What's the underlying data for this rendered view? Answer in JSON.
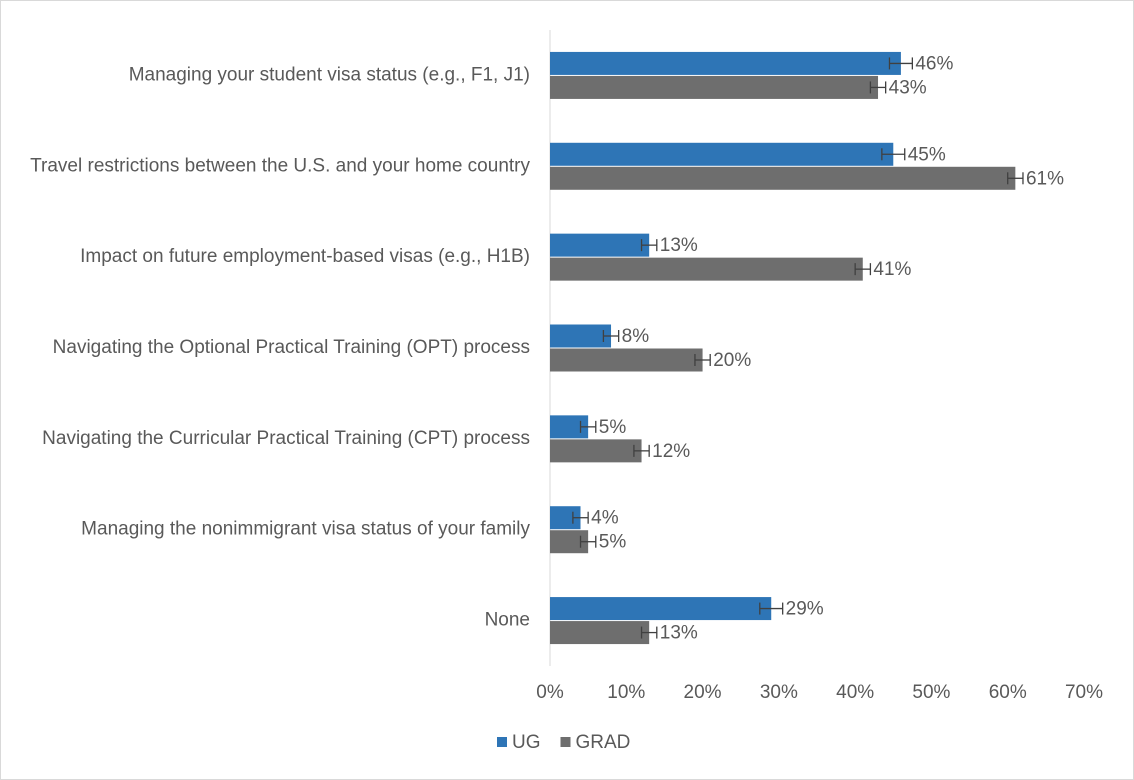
{
  "chart_data": {
    "type": "bar",
    "orientation": "horizontal",
    "categories": [
      "Managing your student visa status (e.g., F1, J1)",
      "Travel restrictions between the U.S. and your home country",
      "Impact on future employment-based visas (e.g., H1B)",
      "Navigating the Optional Practical Training (OPT) process",
      "Navigating the Curricular Practical Training (CPT) process",
      "Managing the nonimmigrant visa status of your family",
      "None"
    ],
    "series": [
      {
        "name": "UG",
        "color": "#2e75b6",
        "values": [
          46,
          45,
          13,
          8,
          5,
          4,
          29
        ],
        "errors": [
          1.5,
          1.5,
          1,
          1,
          1,
          1,
          1.5
        ],
        "value_labels": [
          "46%",
          "45%",
          "13%",
          "8%",
          "5%",
          "4%",
          "29%"
        ]
      },
      {
        "name": "GRAD",
        "color": "#6e6e6e",
        "values": [
          43,
          61,
          41,
          20,
          12,
          5,
          13
        ],
        "errors": [
          1,
          1,
          1,
          1,
          1,
          1,
          1
        ],
        "value_labels": [
          "43%",
          "61%",
          "41%",
          "20%",
          "12%",
          "5%",
          "13%"
        ]
      }
    ],
    "xlim": [
      0,
      70
    ],
    "xticks": [
      {
        "value": 0,
        "label": "0%"
      },
      {
        "value": 10,
        "label": "10%"
      },
      {
        "value": 20,
        "label": "20%"
      },
      {
        "value": 30,
        "label": "30%"
      },
      {
        "value": 40,
        "label": "40%"
      },
      {
        "value": 50,
        "label": "50%"
      },
      {
        "value": 60,
        "label": "60%"
      },
      {
        "value": 70,
        "label": "70%"
      }
    ],
    "legend": "bottom"
  }
}
